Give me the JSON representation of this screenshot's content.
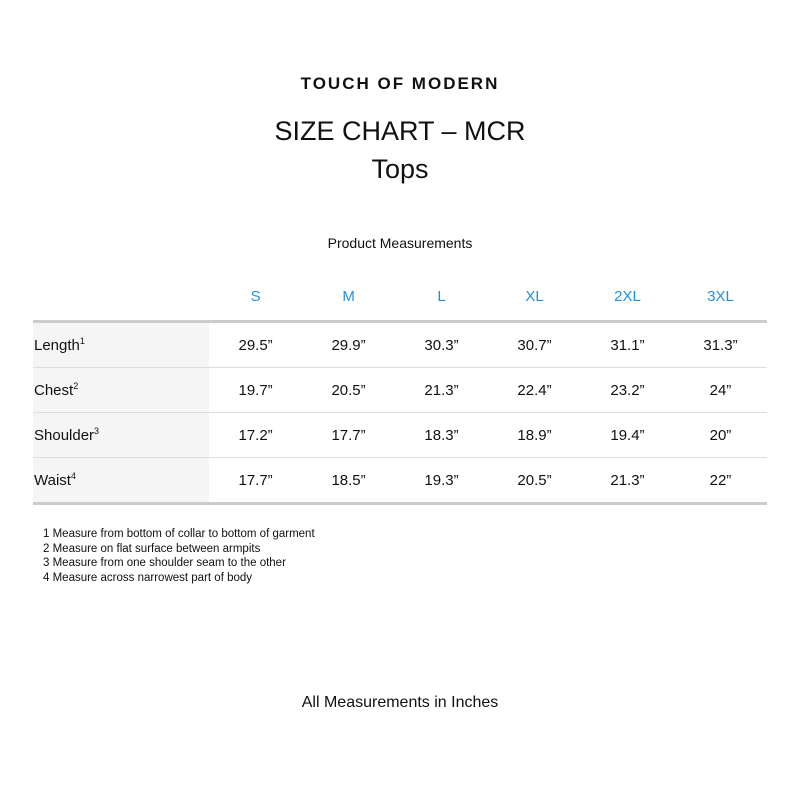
{
  "brand": "TOUCH OF MODERN",
  "title": "SIZE CHART – MCR",
  "subtitle": "Tops",
  "section": "Product Measurements",
  "sizes": [
    "S",
    "M",
    "L",
    "XL",
    "2XL",
    "3XL"
  ],
  "accent_color": "#1e90e6",
  "rows": [
    {
      "label": "Length",
      "note": "1",
      "values": [
        "29.5”",
        "29.9”",
        "30.3”",
        "30.7”",
        "31.1”",
        "31.3”"
      ]
    },
    {
      "label": "Chest",
      "note": "2",
      "values": [
        "19.7”",
        "20.5”",
        "21.3”",
        "22.4”",
        "23.2”",
        "24”"
      ]
    },
    {
      "label": "Shoulder",
      "note": "3",
      "values": [
        "17.2”",
        "17.7”",
        "18.3”",
        "18.9”",
        "19.4”",
        "20”"
      ]
    },
    {
      "label": "Waist",
      "note": "4",
      "values": [
        "17.7”",
        "18.5”",
        "19.3”",
        "20.5”",
        "21.3”",
        "22”"
      ]
    }
  ],
  "notes": [
    "1 Measure from bottom of collar to bottom of garment",
    "2 Measure on flat surface between armpits",
    "3 Measure from one shoulder seam to the other",
    "4 Measure across narrowest part of body"
  ],
  "footer": "All Measurements in Inches"
}
